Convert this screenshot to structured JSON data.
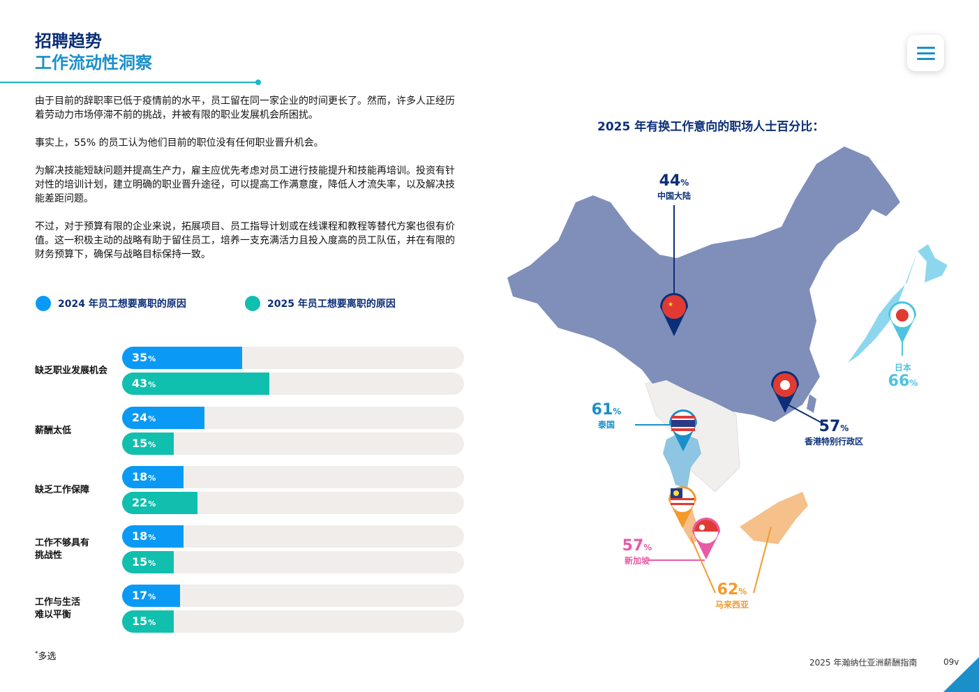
{
  "header": {
    "title_line1": "招聘趋势",
    "title_line2": "工作流动性洞察"
  },
  "body": {
    "p1": "由于目前的辞职率已低于疫情前的水平，员工留在同一家企业的时间更长了。然而，许多人正经历着劳动力市场停滞不前的挑战，并被有限的职业发展机会所困扰。",
    "p2": "事实上，55% 的员工认为他们目前的职位没有任何职业晋升机会。",
    "p3": "为解决技能短缺问题并提高生产力，雇主应优先考虑对员工进行技能提升和技能再培训。投资有针对性的培训计划，建立明确的职业晋升途径，可以提高工作满意度，降低人才流失率，以及解决技能差距问题。",
    "p4": "不过，对于预算有限的企业来说，拓展项目、员工指导计划或在线课程和教程等替代方案也很有价值。这一积极主动的战略有助于留住员工，培养一支充满活力且投入度高的员工队伍，并在有限的财务预算下，确保与战略目标保持一致。"
  },
  "chart_data": {
    "type": "bar",
    "orientation": "horizontal",
    "categories": [
      "缺乏职业发展机会",
      "薪酬太低",
      "缺乏工作保障",
      "工作不够具有挑战性",
      "工作与生活难以平衡"
    ],
    "category_lines": [
      [
        "缺乏职业发展机会"
      ],
      [
        "薪酬太低"
      ],
      [
        "缺乏工作保障"
      ],
      [
        "工作不够具有",
        "挑战性"
      ],
      [
        "工作与生活",
        "难以平衡"
      ]
    ],
    "series": [
      {
        "name": "2024 年员工想要离职的原因",
        "color": "#0a9af5",
        "values": [
          35,
          24,
          18,
          18,
          17
        ]
      },
      {
        "name": "2025 年员工想要离职的原因",
        "color": "#11bfae",
        "values": [
          43,
          15,
          22,
          15,
          15
        ]
      }
    ],
    "unit": "%",
    "xlim": [
      0,
      100
    ]
  },
  "footnote": {
    "mark": "*",
    "text": "多选"
  },
  "map": {
    "title": "2025 年有换工作意向的职场人士百分比：",
    "regions": [
      {
        "key": "china",
        "value": "44",
        "unit": "%",
        "label": "中国大陆",
        "color": "#0b2e78"
      },
      {
        "key": "japan",
        "value": "66",
        "unit": "%",
        "label": "日本",
        "color": "#4ec3df"
      },
      {
        "key": "thailand",
        "value": "61",
        "unit": "%",
        "label": "泰国",
        "color": "#1a8fc9"
      },
      {
        "key": "hongkong",
        "value": "57",
        "unit": "%",
        "label": "香港特别行政区",
        "color": "#0b2e78"
      },
      {
        "key": "singapore",
        "value": "57",
        "unit": "%",
        "label": "新加坡",
        "color": "#e95aa4"
      },
      {
        "key": "malaysia",
        "value": "62",
        "unit": "%",
        "label": "马来西亚",
        "color": "#f39a2d"
      }
    ],
    "colors": {
      "china_fill": "#7f8fba",
      "japan_fill": "#8dd7ee",
      "thailand_fill": "#8dc5e2",
      "malaysia_fill": "#f5c08a",
      "neighbors_fill": "#f1efed"
    }
  },
  "footer": {
    "text": "2025 年瀚纳仕亚洲薪酬指南",
    "page": "09v"
  }
}
